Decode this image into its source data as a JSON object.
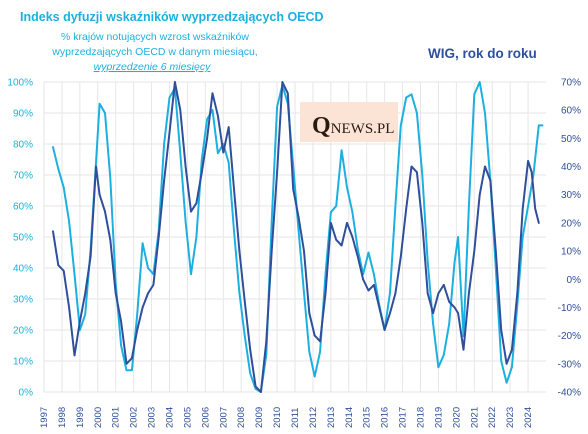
{
  "chart_data": {
    "type": "line",
    "title": "Indeks dyfuzji wskaźników wyprzedzających OECD",
    "subtitle_lines": [
      "% krajów notujących wzrost wskaźników",
      "wyprzedzających OECD w danym miesiącu,"
    ],
    "note": "wyprzedzenie 6 miesięcy",
    "right_title": "WIG, rok do roku",
    "logo": {
      "q": "Q",
      "rest": "NEWS.PL"
    },
    "y_left_ticks": [
      "0%",
      "10%",
      "20%",
      "30%",
      "40%",
      "50%",
      "60%",
      "70%",
      "80%",
      "90%",
      "100%"
    ],
    "y_right_ticks": [
      "-40%",
      "-30%",
      "-20%",
      "-10%",
      "0%",
      "10%",
      "20%",
      "30%",
      "40%",
      "50%",
      "60%",
      "70%"
    ],
    "x_ticks": [
      "1997",
      "1998",
      "1999",
      "2000",
      "2001",
      "2002",
      "2003",
      "2004",
      "2005",
      "2006",
      "2007",
      "2008",
      "2009",
      "2010",
      "2011",
      "2012",
      "2013",
      "2014",
      "2015",
      "2016",
      "2017",
      "2018",
      "2019",
      "2020",
      "2021",
      "2022",
      "2023",
      "2024"
    ],
    "ylim_left": [
      0,
      100
    ],
    "ylim_right": [
      -40,
      70
    ],
    "xlim": [
      1997,
      2025
    ],
    "grid": true,
    "colors": {
      "diffusion": "#1cb0e0",
      "wig": "#2f4f9b",
      "grid": "#e6e6e6",
      "logo_bg": "#fbe3d6"
    },
    "series": [
      {
        "axis": "left",
        "values": [
          [
            1997.5,
            79
          ],
          [
            1997.8,
            72
          ],
          [
            1998.1,
            66
          ],
          [
            1998.4,
            55
          ],
          [
            1998.7,
            38
          ],
          [
            1999.0,
            20
          ],
          [
            1999.3,
            25
          ],
          [
            1999.6,
            46
          ],
          [
            1999.9,
            74
          ],
          [
            2000.1,
            93
          ],
          [
            2000.4,
            90
          ],
          [
            2000.7,
            69
          ],
          [
            2001.0,
            35
          ],
          [
            2001.3,
            15
          ],
          [
            2001.6,
            7
          ],
          [
            2001.9,
            7
          ],
          [
            2002.2,
            25
          ],
          [
            2002.5,
            48
          ],
          [
            2002.8,
            40
          ],
          [
            2003.1,
            38
          ],
          [
            2003.4,
            52
          ],
          [
            2003.7,
            80
          ],
          [
            2004.0,
            95
          ],
          [
            2004.3,
            98
          ],
          [
            2004.6,
            77
          ],
          [
            2004.9,
            55
          ],
          [
            2005.2,
            38
          ],
          [
            2005.5,
            50
          ],
          [
            2005.8,
            75
          ],
          [
            2006.1,
            88
          ],
          [
            2006.4,
            91
          ],
          [
            2006.7,
            77
          ],
          [
            2007.0,
            80
          ],
          [
            2007.3,
            74
          ],
          [
            2007.6,
            52
          ],
          [
            2007.9,
            32
          ],
          [
            2008.2,
            18
          ],
          [
            2008.5,
            6
          ],
          [
            2008.8,
            1
          ],
          [
            2009.1,
            0
          ],
          [
            2009.4,
            12
          ],
          [
            2009.7,
            55
          ],
          [
            2010.0,
            92
          ],
          [
            2010.3,
            99
          ],
          [
            2010.6,
            93
          ],
          [
            2010.9,
            73
          ],
          [
            2011.2,
            52
          ],
          [
            2011.5,
            32
          ],
          [
            2011.8,
            13
          ],
          [
            2012.1,
            5
          ],
          [
            2012.4,
            13
          ],
          [
            2012.7,
            38
          ],
          [
            2013.0,
            58
          ],
          [
            2013.3,
            60
          ],
          [
            2013.6,
            78
          ],
          [
            2013.9,
            66
          ],
          [
            2014.2,
            58
          ],
          [
            2014.5,
            46
          ],
          [
            2014.8,
            38
          ],
          [
            2015.1,
            45
          ],
          [
            2015.4,
            38
          ],
          [
            2015.7,
            28
          ],
          [
            2016.0,
            20
          ],
          [
            2016.3,
            32
          ],
          [
            2016.6,
            60
          ],
          [
            2016.9,
            86
          ],
          [
            2017.2,
            95
          ],
          [
            2017.5,
            96
          ],
          [
            2017.8,
            90
          ],
          [
            2018.1,
            70
          ],
          [
            2018.4,
            42
          ],
          [
            2018.7,
            22
          ],
          [
            2019.0,
            8
          ],
          [
            2019.3,
            12
          ],
          [
            2019.6,
            22
          ],
          [
            2019.9,
            42
          ],
          [
            2020.1,
            50
          ],
          [
            2020.4,
            18
          ],
          [
            2020.7,
            60
          ],
          [
            2021.0,
            96
          ],
          [
            2021.3,
            100
          ],
          [
            2021.6,
            90
          ],
          [
            2021.9,
            68
          ],
          [
            2022.2,
            40
          ],
          [
            2022.5,
            10
          ],
          [
            2022.8,
            3
          ],
          [
            2023.1,
            8
          ],
          [
            2023.4,
            28
          ],
          [
            2023.7,
            50
          ],
          [
            2024.0,
            60
          ],
          [
            2024.3,
            70
          ],
          [
            2024.6,
            86
          ],
          [
            2024.8,
            86
          ]
        ]
      },
      {
        "axis": "right",
        "values": [
          [
            1997.5,
            17
          ],
          [
            1997.8,
            5
          ],
          [
            1998.1,
            3
          ],
          [
            1998.4,
            -10
          ],
          [
            1998.7,
            -27
          ],
          [
            1999.0,
            -15
          ],
          [
            1999.3,
            -5
          ],
          [
            1999.6,
            8
          ],
          [
            1999.9,
            40
          ],
          [
            2000.1,
            30
          ],
          [
            2000.4,
            24
          ],
          [
            2000.7,
            14
          ],
          [
            2001.0,
            -5
          ],
          [
            2001.3,
            -15
          ],
          [
            2001.6,
            -30
          ],
          [
            2001.9,
            -28
          ],
          [
            2002.2,
            -18
          ],
          [
            2002.5,
            -10
          ],
          [
            2002.8,
            -5
          ],
          [
            2003.1,
            -2
          ],
          [
            2003.4,
            15
          ],
          [
            2003.7,
            35
          ],
          [
            2004.0,
            52
          ],
          [
            2004.3,
            70
          ],
          [
            2004.6,
            60
          ],
          [
            2004.9,
            40
          ],
          [
            2005.2,
            24
          ],
          [
            2005.5,
            27
          ],
          [
            2005.8,
            38
          ],
          [
            2006.1,
            50
          ],
          [
            2006.4,
            66
          ],
          [
            2006.7,
            58
          ],
          [
            2007.0,
            45
          ],
          [
            2007.3,
            54
          ],
          [
            2007.6,
            32
          ],
          [
            2007.9,
            10
          ],
          [
            2008.2,
            -8
          ],
          [
            2008.5,
            -25
          ],
          [
            2008.8,
            -38
          ],
          [
            2009.1,
            -40
          ],
          [
            2009.4,
            -22
          ],
          [
            2009.7,
            10
          ],
          [
            2010.0,
            38
          ],
          [
            2010.3,
            70
          ],
          [
            2010.6,
            66
          ],
          [
            2010.9,
            32
          ],
          [
            2011.2,
            22
          ],
          [
            2011.5,
            10
          ],
          [
            2011.8,
            -12
          ],
          [
            2012.1,
            -20
          ],
          [
            2012.4,
            -22
          ],
          [
            2012.7,
            -5
          ],
          [
            2013.0,
            20
          ],
          [
            2013.3,
            14
          ],
          [
            2013.6,
            12
          ],
          [
            2013.9,
            20
          ],
          [
            2014.2,
            15
          ],
          [
            2014.5,
            8
          ],
          [
            2014.8,
            0
          ],
          [
            2015.1,
            -4
          ],
          [
            2015.4,
            -2
          ],
          [
            2015.7,
            -10
          ],
          [
            2016.0,
            -18
          ],
          [
            2016.3,
            -12
          ],
          [
            2016.6,
            -5
          ],
          [
            2016.9,
            8
          ],
          [
            2017.2,
            25
          ],
          [
            2017.5,
            40
          ],
          [
            2017.8,
            38
          ],
          [
            2018.1,
            20
          ],
          [
            2018.4,
            -5
          ],
          [
            2018.7,
            -12
          ],
          [
            2019.0,
            -5
          ],
          [
            2019.3,
            -2
          ],
          [
            2019.6,
            -8
          ],
          [
            2019.9,
            -10
          ],
          [
            2020.1,
            -12
          ],
          [
            2020.4,
            -25
          ],
          [
            2020.7,
            -5
          ],
          [
            2021.0,
            10
          ],
          [
            2021.3,
            30
          ],
          [
            2021.6,
            40
          ],
          [
            2021.9,
            35
          ],
          [
            2022.2,
            10
          ],
          [
            2022.5,
            -18
          ],
          [
            2022.8,
            -30
          ],
          [
            2023.1,
            -25
          ],
          [
            2023.4,
            -5
          ],
          [
            2023.7,
            25
          ],
          [
            2024.0,
            42
          ],
          [
            2024.2,
            38
          ],
          [
            2024.4,
            25
          ],
          [
            2024.6,
            20
          ]
        ]
      }
    ]
  }
}
